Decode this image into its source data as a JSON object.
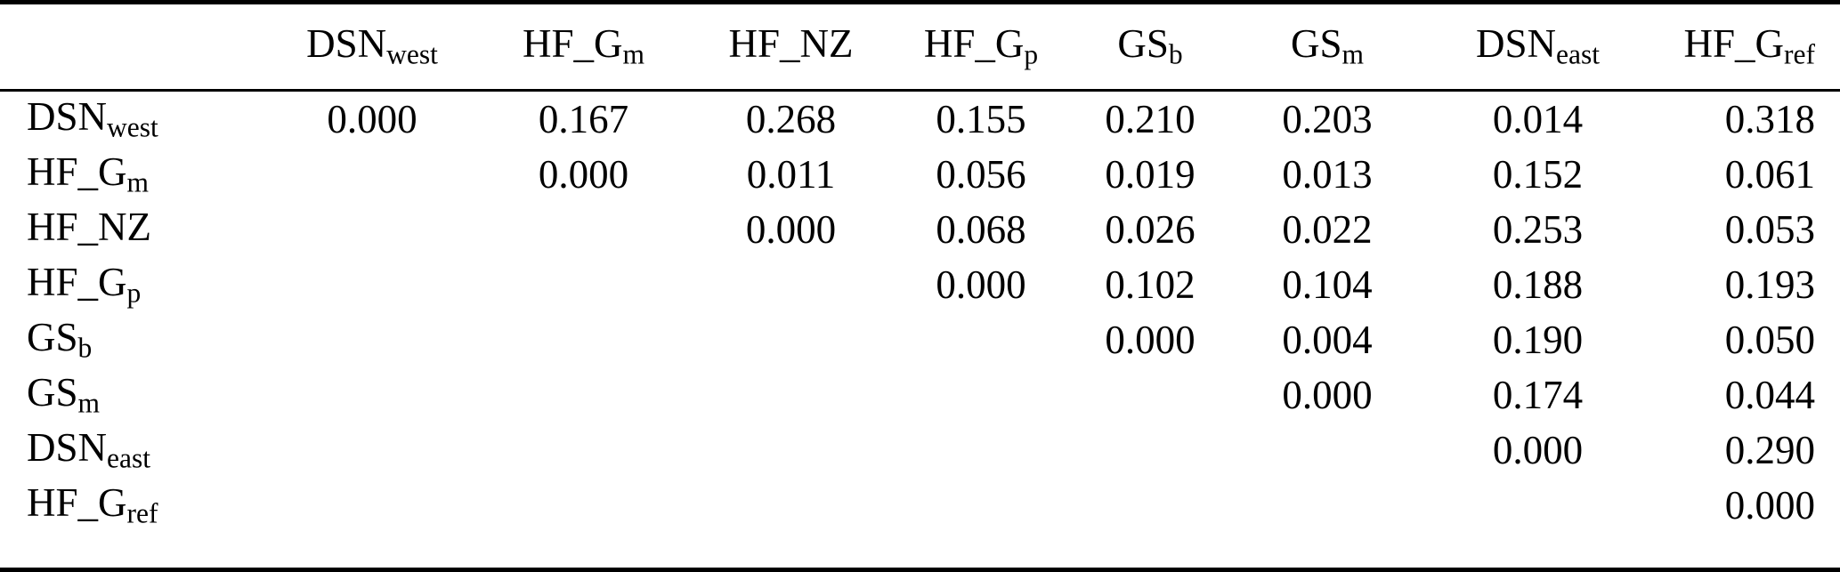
{
  "table": {
    "corner_label": "",
    "col_headers": [
      {
        "base": "DSN",
        "sub": "west"
      },
      {
        "base": "HF_G",
        "sub": "m"
      },
      {
        "base": "HF_NZ",
        "sub": ""
      },
      {
        "base": "HF_G",
        "sub": "p"
      },
      {
        "base": "GS",
        "sub": "b"
      },
      {
        "base": "GS",
        "sub": "m"
      },
      {
        "base": "DSN",
        "sub": "east"
      },
      {
        "base": "HF_G",
        "sub": "ref"
      }
    ],
    "rows": [
      {
        "label": {
          "base": "DSN",
          "sub": "west"
        },
        "values": [
          "0.000",
          "0.167",
          "0.268",
          "0.155",
          "0.210",
          "0.203",
          "0.014",
          "0.318"
        ]
      },
      {
        "label": {
          "base": "HF_G",
          "sub": "m"
        },
        "values": [
          "",
          "0.000",
          "0.011",
          "0.056",
          "0.019",
          "0.013",
          "0.152",
          "0.061"
        ]
      },
      {
        "label": {
          "base": "HF_NZ",
          "sub": ""
        },
        "values": [
          "",
          "",
          "0.000",
          "0.068",
          "0.026",
          "0.022",
          "0.253",
          "0.053"
        ]
      },
      {
        "label": {
          "base": "HF_G",
          "sub": "p"
        },
        "values": [
          "",
          "",
          "",
          "0.000",
          "0.102",
          "0.104",
          "0.188",
          "0.193"
        ]
      },
      {
        "label": {
          "base": "GS",
          "sub": "b"
        },
        "values": [
          "",
          "",
          "",
          "",
          "0.000",
          "0.004",
          "0.190",
          "0.050"
        ]
      },
      {
        "label": {
          "base": "GS",
          "sub": "m"
        },
        "values": [
          "",
          "",
          "",
          "",
          "",
          "0.000",
          "0.174",
          "0.044"
        ]
      },
      {
        "label": {
          "base": "DSN",
          "sub": "east"
        },
        "values": [
          "",
          "",
          "",
          "",
          "",
          "",
          "0.000",
          "0.290"
        ]
      },
      {
        "label": {
          "base": "HF_G",
          "sub": "ref"
        },
        "values": [
          "",
          "",
          "",
          "",
          "",
          "",
          "",
          "0.000"
        ]
      }
    ],
    "colors": {
      "text": "#000000",
      "background": "#ffffff",
      "rule": "#000000"
    }
  }
}
